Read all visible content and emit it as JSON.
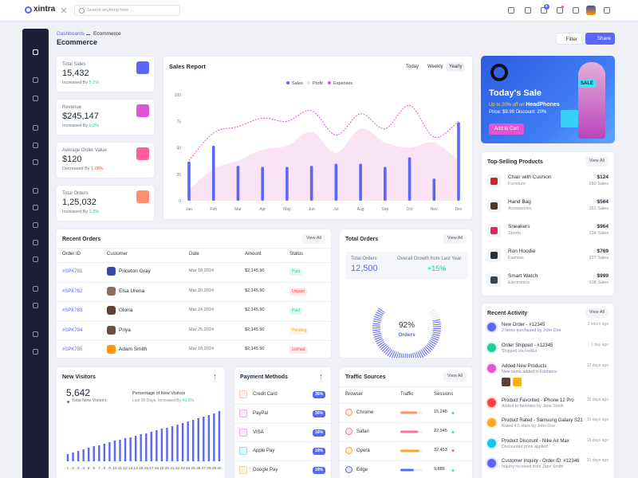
{
  "header": {
    "logo": "xintra",
    "search_placeholder": "Search anything here ...",
    "cart_badge": 5
  },
  "breadcrumb": [
    "Dashboards",
    "Ecommerce"
  ],
  "page_title": "Ecommerce",
  "actions": [
    "Filter",
    "Share"
  ],
  "stats": [
    {
      "label": "Total Sales",
      "value": "15,432",
      "trend": "Increased By",
      "change": "5.1%",
      "change_color": "#21ce9c",
      "icon_color": "#5c67f7"
    },
    {
      "label": "Revenue",
      "value": "$245,147",
      "trend": "Increased By",
      "change": "0.0%",
      "change_color": "#21ce9c",
      "icon_color": "#e354d4"
    },
    {
      "label": "Average Order Value",
      "value": "$120",
      "trend": "Decreased By",
      "change": "1.08%",
      "change_color": "#fb4242",
      "icon_color": "#ff5d9f"
    },
    {
      "label": "Total Orders",
      "value": "1,25,032",
      "trend": "Increased By",
      "change": "2.3%",
      "change_color": "#21ce9c",
      "icon_color": "#ff8e6f"
    }
  ],
  "sales_report": {
    "type": "mixed",
    "title": "Sales Report",
    "tabs": [
      "Today",
      "Weekly",
      "Yearly"
    ],
    "active_tab": 2,
    "categories": [
      "Jan",
      "Feb",
      "Mar",
      "Apr",
      "May",
      "Jun",
      "Jul",
      "Aug",
      "Sep",
      "Oct",
      "Nov",
      "Dec"
    ],
    "ylim": [
      0,
      100
    ],
    "yticks": [
      0,
      25,
      50,
      75,
      100
    ],
    "series": [
      {
        "name": "Sales",
        "type": "bar",
        "color": "#5c67f7",
        "values": [
          37,
          52,
          33,
          32,
          32,
          33,
          35,
          35,
          32,
          41,
          21,
          74
        ]
      },
      {
        "name": "Profit",
        "type": "area",
        "color": "#f9dcef",
        "values": [
          10,
          30,
          38,
          48,
          52,
          65,
          45,
          68,
          55,
          50,
          55,
          38
        ]
      },
      {
        "name": "Expenses",
        "type": "line",
        "color": "#e354d4",
        "values": [
          38,
          64,
          70,
          78,
          75,
          85,
          62,
          82,
          68,
          90,
          60,
          75
        ]
      }
    ]
  },
  "banner": {
    "title": "Today's Sale",
    "offer": "Up to 20% off on",
    "product": "HeadPhones",
    "price": "Price: $9.99",
    "discount": "Discount: 20%",
    "button": "Add to Cart",
    "tag": "SALE"
  },
  "top_products": {
    "title": "Top-Selling Products",
    "view_all": "View All",
    "items": [
      {
        "name": "Chair with Cushion",
        "category": "Furniture",
        "price": "$124",
        "sales": "260 Sales"
      },
      {
        "name": "Hand Bag",
        "category": "Accessories",
        "price": "$564",
        "sales": "181 Sales"
      },
      {
        "name": "Sneakers",
        "category": "Sports",
        "price": "$964",
        "sales": "134 Sales"
      },
      {
        "name": "Ron Hoodie",
        "category": "Fashion",
        "price": "$769",
        "sales": "127 Sales"
      },
      {
        "name": "Smart Watch",
        "category": "Electronics",
        "price": "$999",
        "sales": "108 Sales"
      }
    ]
  },
  "recent_orders": {
    "title": "Recent Orders",
    "view_all": "View All",
    "columns": [
      "Order ID",
      "Customer",
      "Date",
      "Amount",
      "Status"
    ],
    "rows": [
      {
        "id": "#SPK781",
        "customer": "Priceton Gray",
        "date": "Mar 18,2024",
        "amount": "$2,145.90",
        "status": "Paid",
        "status_color": "#21ce9c"
      },
      {
        "id": "#SPK782",
        "customer": "Elsa Urena",
        "date": "Mar 20,2024",
        "amount": "$2,145.90",
        "status": "Unpaid",
        "status_color": "#fb4242"
      },
      {
        "id": "#SPK783",
        "customer": "Gloria",
        "date": "Mar 24,2024",
        "amount": "$2,145.90",
        "status": "Paid",
        "status_color": "#21ce9c"
      },
      {
        "id": "#SPK784",
        "customer": "Priya",
        "date": "Mar 25,2024",
        "amount": "$2,145.90",
        "status": "Pending",
        "status_color": "#ffa51e"
      },
      {
        "id": "#SPK785",
        "customer": "Adam Smith",
        "date": "Mar 18,2024",
        "amount": "$2,145.90",
        "status": "UnPaid",
        "status_color": "#fb4242"
      }
    ]
  },
  "total_orders": {
    "title": "Total Orders",
    "view_all": "View All",
    "label": "Total Orders",
    "value": "12,500",
    "growth_label": "Overall Growth from Last Year",
    "growth": "+15%",
    "gauge": {
      "value": 92,
      "label": "92%",
      "caption": "Orders",
      "color": "#5c67f7"
    }
  },
  "new_visitors": {
    "title": "New Visitors",
    "value": "5,642",
    "caption": "Total New Visitors",
    "pct_title": "Percentage of New Visitors",
    "pct_detail": "Last 30 Days, Increased By",
    "pct": "43.6%",
    "color": "#5c67f7",
    "categories": [
      1,
      2,
      3,
      4,
      5,
      6,
      7,
      8,
      9,
      10,
      11,
      12,
      13,
      14,
      15,
      16,
      17,
      18,
      19,
      20,
      21,
      22,
      23,
      24,
      25,
      26,
      27,
      28,
      29,
      30
    ],
    "values": [
      9,
      11,
      13,
      15,
      17,
      19,
      20,
      22,
      24,
      26,
      27,
      29,
      30,
      32,
      34,
      35,
      37,
      39,
      41,
      42,
      44,
      46,
      48,
      50,
      52,
      54,
      56,
      58,
      60,
      63
    ]
  },
  "payment_methods": {
    "title": "Payment Methods",
    "items": [
      {
        "name": "Credit Card",
        "share": "35%"
      },
      {
        "name": "PayPal",
        "share": "30%"
      },
      {
        "name": "VISA",
        "share": "10%"
      },
      {
        "name": "Apple Pay",
        "share": "10%"
      },
      {
        "name": "Google Pay",
        "share": "10%"
      }
    ]
  },
  "traffic_sources": {
    "title": "Traffic Sources",
    "view_all": "View All",
    "columns": [
      "Browser",
      "Traffic",
      "Sessions"
    ],
    "rows": [
      {
        "browser": "Chrome",
        "traffic": 75,
        "color": "#ff8e6f",
        "sessions": "15,248",
        "trend": "up"
      },
      {
        "browser": "Safari",
        "traffic": 80,
        "color": "#ff6fa8",
        "sessions": "22,945",
        "trend": "up"
      },
      {
        "browser": "Opera",
        "traffic": 85,
        "color": "#ffa51e",
        "sessions": "32,453",
        "trend": "down"
      },
      {
        "browser": "Edge",
        "traffic": 60,
        "color": "#5c67f7",
        "sessions": "9,886",
        "trend": "up"
      }
    ]
  },
  "recent_activity": {
    "title": "Recent Activity",
    "view_all": "View All",
    "items": [
      {
        "title": "New Order - #12345",
        "detail": "2 items purchased by John Doe",
        "time": "3 hours ago",
        "color": "#5c67f7"
      },
      {
        "title": "Order Shipped - #12345",
        "detail": "Shipped via FedEx",
        "time": "1 day ago",
        "color": "#21ce9c"
      },
      {
        "title": "Added New Products",
        "detail": "New items added in Fashions",
        "time": "12 days ago",
        "color": "#e354d4"
      },
      {
        "title": "Product Favorited - iPhone 12 Pro",
        "detail": "Added to favorites by Jane Smith",
        "time": "15 days ago",
        "color": "#fb4242"
      },
      {
        "title": "Product Rated - Samsung Galaxy S21",
        "detail": "Rated 4.5 stars by John Doe",
        "time": "16 days ago",
        "color": "#ffa51e"
      },
      {
        "title": "Product Discount - Nike Air Max",
        "detail": "Discounted price applied",
        "time": "18 days ago",
        "color": "#0ec9ef"
      },
      {
        "title": "Customer Inquiry - Order ID: #12346",
        "detail": "Inquiry received from Jane Smith",
        "time": "20 days ago",
        "color": "#5c67f7"
      }
    ]
  }
}
